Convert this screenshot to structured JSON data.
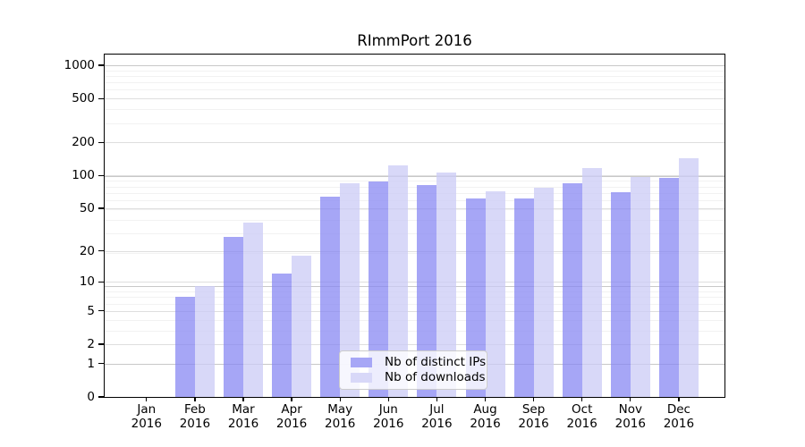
{
  "chart_data": {
    "type": "bar",
    "title": "RImmPort 2016",
    "x_categories": [
      "Jan",
      "Feb",
      "Mar",
      "Apr",
      "May",
      "Jun",
      "Jul",
      "Aug",
      "Sep",
      "Oct",
      "Nov",
      "Dec"
    ],
    "x_year": "2016",
    "series": [
      {
        "name": "Nb of distinct IPs",
        "color": "#a6a6f6",
        "fill": "rgba(132,132,242,0.72)",
        "values": [
          0,
          7,
          27,
          12,
          64,
          88,
          81,
          61,
          61,
          85,
          70,
          94
        ]
      },
      {
        "name": "Nb of downloads",
        "color": "#d8d8f8",
        "fill": "rgba(203,203,245,0.75)",
        "values": [
          0,
          9,
          37,
          18,
          84,
          123,
          107,
          72,
          77,
          116,
          96,
          144
        ]
      }
    ],
    "y_axis": {
      "scale": "log1p",
      "ticks": [
        1000,
        500,
        200,
        100,
        50,
        20,
        10,
        5,
        2,
        1,
        0
      ],
      "range": [
        0,
        1250
      ]
    },
    "legend": {
      "position": "lower center"
    },
    "grid": true,
    "grid_colors": {
      "minor": "#f2f2f2",
      "major": "#dedede",
      "decade": "#c8c8c8"
    }
  }
}
